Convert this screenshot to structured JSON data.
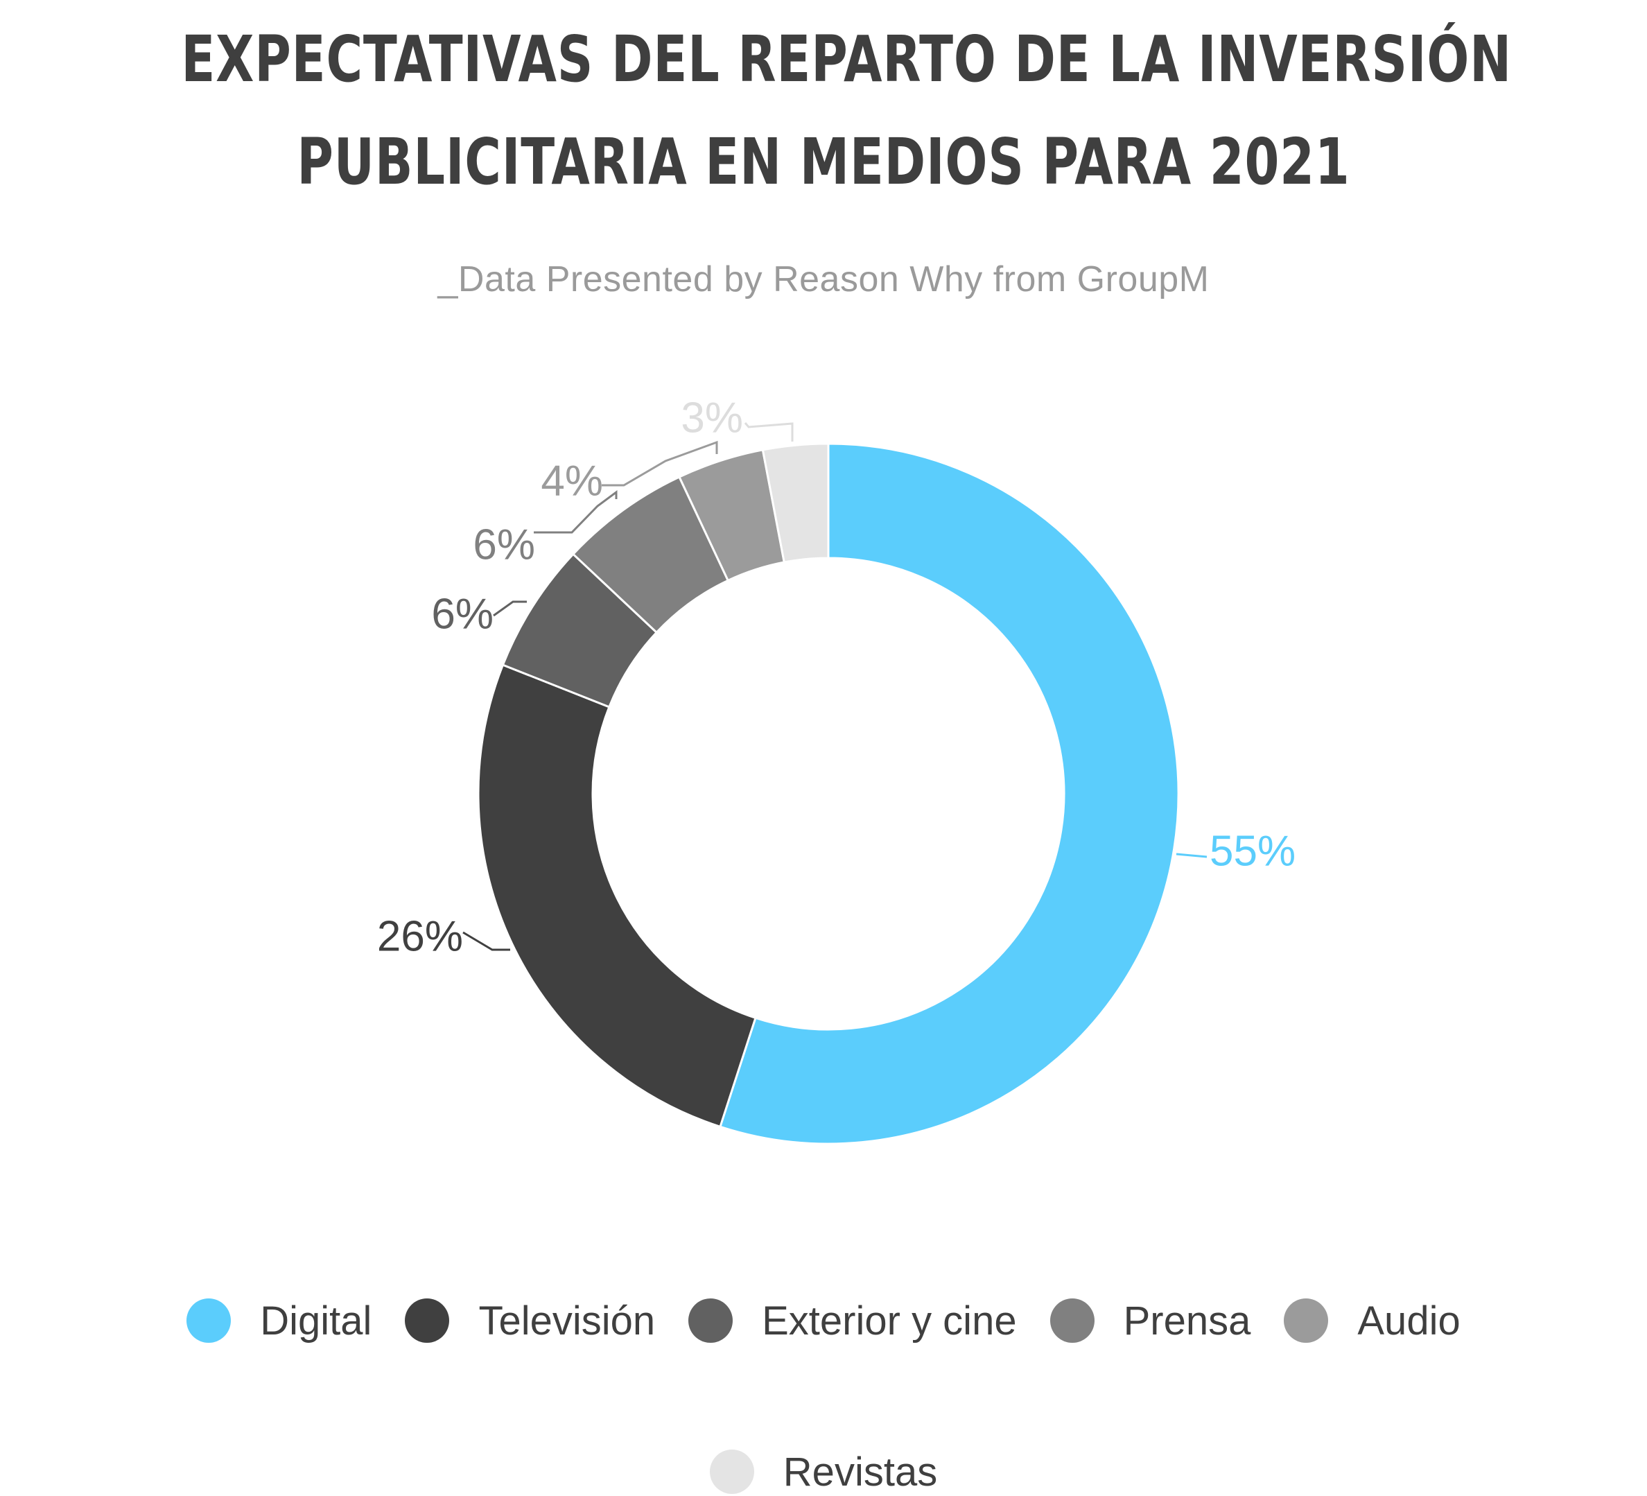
{
  "title": {
    "line1": "EXPECTATIVAS DEL REPARTO DE LA INVERSIÓN",
    "line2": "PUBLICITARIA EN MEDIOS PARA 2021"
  },
  "subtitle": "_Data Presented by Reason Why from GroupM",
  "chart_data": {
    "type": "pie",
    "title": "EXPECTATIVAS DEL REPARTO DE LA INVERSIÓN PUBLICITARIA EN MEDIOS PARA 2021",
    "subtitle": "_Data Presented by Reason Why from GroupM",
    "donut": true,
    "legend_position": "bottom",
    "slices": [
      {
        "label": "Digital",
        "value": 55,
        "data_label": "55%",
        "color": "#5bcdfc"
      },
      {
        "label": "Televisión",
        "value": 26,
        "data_label": "26%",
        "color": "#404040"
      },
      {
        "label": "Exterior y cine",
        "value": 6,
        "data_label": "6%",
        "color": "#616161"
      },
      {
        "label": "Prensa",
        "value": 6,
        "data_label": "6%",
        "color": "#808080"
      },
      {
        "label": "Audio",
        "value": 4,
        "data_label": "4%",
        "color": "#9b9b9b"
      },
      {
        "label": "Revistas",
        "value": 3,
        "data_label": "3%",
        "color": "#e4e4e4"
      }
    ]
  }
}
